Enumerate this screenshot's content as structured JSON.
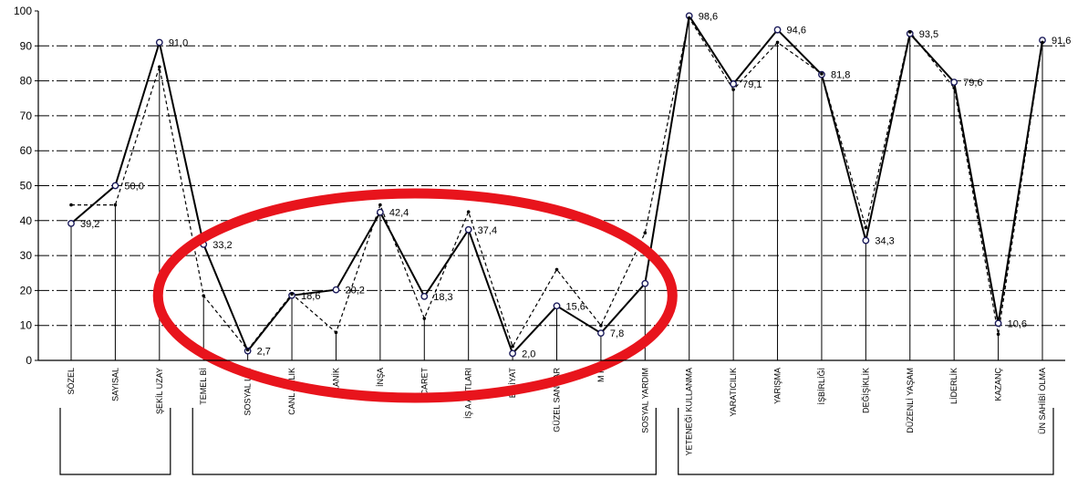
{
  "chart_data": {
    "type": "line",
    "title": "",
    "xlabel": "",
    "ylabel": "",
    "ylim": [
      0,
      100
    ],
    "yticks": [
      0,
      10,
      20,
      30,
      40,
      50,
      60,
      70,
      80,
      90,
      100
    ],
    "grid": "horizontal-dashed",
    "categories": [
      "SÖZEL",
      "SAYISAL",
      "ŞEKİL UZAY",
      "TEMEL Bİ",
      "SOSYAL  LİM",
      "CANL  ARLIK",
      "EKANİK",
      "İNŞA",
      "İCARET",
      "İŞ A   ANTLARI",
      "E   BİYAT",
      "GÜZEL SAN  LAR",
      "M  K",
      "SOSYAL YARDIM",
      "YETENEĞİ KULLANMA",
      "YARATICILIK",
      "YARIŞMA",
      "İŞBİRLİĞİ",
      "DEĞİŞİKLİK",
      "DÜZENLİ YAŞAM",
      "LİDERLİK",
      "KAZANÇ",
      "ÜN SAHİBİ OLMA"
    ],
    "series": [
      {
        "style": "solid",
        "values": [
          39.2,
          50.0,
          91.0,
          33.2,
          2.7,
          18.6,
          20.2,
          42.4,
          18.3,
          37.4,
          2.0,
          15.6,
          7.8,
          22.0,
          98.6,
          79.1,
          94.6,
          81.8,
          34.3,
          93.5,
          79.6,
          10.6,
          91.6
        ]
      },
      {
        "style": "dashed",
        "values": [
          44.5,
          44.5,
          84.0,
          18.5,
          3.0,
          19.0,
          8.0,
          44.5,
          12.0,
          42.5,
          4.0,
          26.0,
          10.0,
          36.5,
          98.0,
          77.5,
          91.0,
          82.0,
          38.0,
          94.0,
          78.0,
          7.5,
          91.0
        ]
      }
    ],
    "data_labels": [
      {
        "index": 0,
        "text": "39,2"
      },
      {
        "index": 1,
        "text": "50,0"
      },
      {
        "index": 2,
        "text": "91,0"
      },
      {
        "index": 3,
        "text": "33,2"
      },
      {
        "index": 4,
        "text": "2,7"
      },
      {
        "index": 5,
        "text": "18,6"
      },
      {
        "index": 6,
        "text": "20,2"
      },
      {
        "index": 7,
        "text": "42,4"
      },
      {
        "index": 8,
        "text": "18,3"
      },
      {
        "index": 9,
        "text": "37,4"
      },
      {
        "index": 10,
        "text": "2,0"
      },
      {
        "index": 11,
        "text": "15,6"
      },
      {
        "index": 12,
        "text": "7,8"
      },
      {
        "index": 14,
        "text": "98,6"
      },
      {
        "index": 15,
        "text": "79,1"
      },
      {
        "index": 16,
        "text": "94,6"
      },
      {
        "index": 17,
        "text": "81,8"
      },
      {
        "index": 18,
        "text": "34,3"
      },
      {
        "index": 19,
        "text": "93,5"
      },
      {
        "index": 20,
        "text": "79,6"
      },
      {
        "index": 21,
        "text": "10,6"
      },
      {
        "index": 22,
        "text": "91,6"
      }
    ],
    "groups": [
      {
        "from": 0,
        "to": 2
      },
      {
        "from": 3,
        "to": 13
      },
      {
        "from": 14,
        "to": 22
      }
    ],
    "highlight": {
      "shape": "ellipse",
      "color": "#e8141c",
      "from": 3,
      "to": 13
    }
  }
}
